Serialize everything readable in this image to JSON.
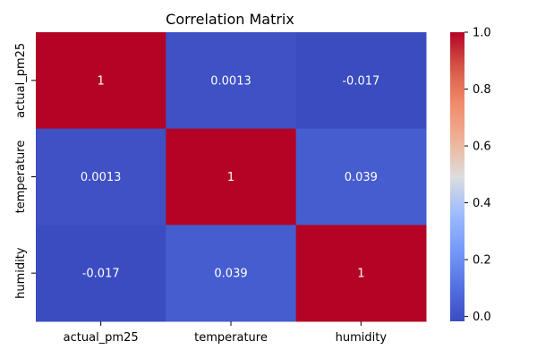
{
  "chart_data": {
    "type": "heatmap",
    "title": "Correlation Matrix",
    "rows": [
      "actual_pm25",
      "temperature",
      "humidity"
    ],
    "cols": [
      "actual_pm25",
      "temperature",
      "humidity"
    ],
    "values": [
      [
        1,
        0.0013,
        -0.017
      ],
      [
        0.0013,
        1,
        0.039
      ],
      [
        -0.017,
        0.039,
        1
      ]
    ],
    "cell_labels": [
      [
        "1",
        "0.0013",
        "-0.017"
      ],
      [
        "0.0013",
        "1",
        "0.039"
      ],
      [
        "-0.017",
        "0.039",
        "1"
      ]
    ],
    "colormap": "coolwarm",
    "colorbar": {
      "vmin": -0.017,
      "vmax": 1,
      "ticks": [
        0.0,
        0.2,
        0.4,
        0.6,
        0.8,
        1.0
      ],
      "tick_labels": [
        "0.0",
        "0.2",
        "0.4",
        "0.6",
        "0.8",
        "1.0"
      ]
    },
    "annotation_color": "#ffffff"
  }
}
